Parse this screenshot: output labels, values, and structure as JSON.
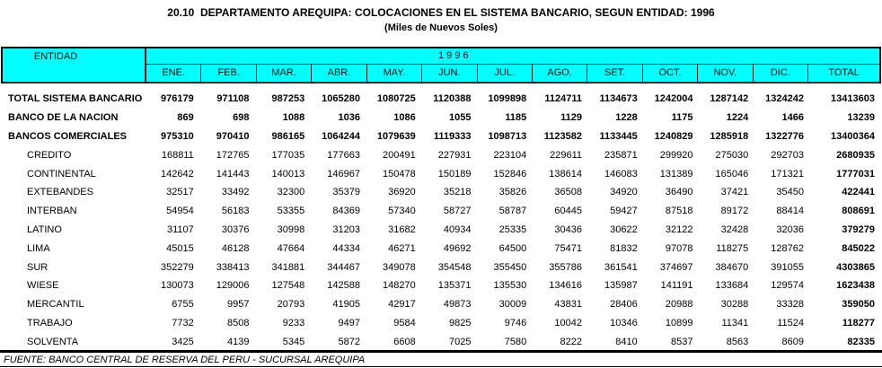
{
  "title": "20.10  DEPARTAMENTO AREQUIPA: COLOCACIONES EN EL SISTEMA BANCARIO, SEGUN ENTIDAD: 1996",
  "subtitle": "(Miles de Nuevos Soles)",
  "footer": "FUENTE: BANCO CENTRAL DE RESERVA DEL PERU - SUCURSAL AREQUIPA",
  "colors": {
    "header_bg": "#00FFFF",
    "text": "#000000",
    "background": "#FFFFFF"
  },
  "table": {
    "entity_header": "ENTIDAD",
    "year_header": "1 9 9 6",
    "columns": [
      "ENE.",
      "FEB.",
      "MAR.",
      "ABR.",
      "MAY.",
      "JUN.",
      "JUL.",
      "AGO.",
      "SET.",
      "OCT.",
      "NOV.",
      "DIC.",
      "TOTAL"
    ],
    "rows": [
      {
        "label": "TOTAL SISTEMA BANCARIO",
        "bold": true,
        "indent": false,
        "values": [
          976179,
          971108,
          987253,
          1065280,
          1080725,
          1120388,
          1099898,
          1124711,
          1134673,
          1242004,
          1287142,
          1324242,
          13413603
        ]
      },
      {
        "label": "BANCO DE LA NACION",
        "bold": true,
        "indent": false,
        "values": [
          869,
          698,
          1088,
          1036,
          1086,
          1055,
          1185,
          1129,
          1228,
          1175,
          1224,
          1466,
          13239
        ]
      },
      {
        "label": "BANCOS COMERCIALES",
        "bold": true,
        "indent": false,
        "values": [
          975310,
          970410,
          986165,
          1064244,
          1079639,
          1119333,
          1098713,
          1123582,
          1133445,
          1240829,
          1285918,
          1322776,
          13400364
        ]
      },
      {
        "label": "CREDITO",
        "bold": false,
        "indent": true,
        "values": [
          168811,
          172765,
          177035,
          177663,
          200491,
          227931,
          223104,
          229611,
          235871,
          299920,
          275030,
          292703,
          2680935
        ]
      },
      {
        "label": "CONTINENTAL",
        "bold": false,
        "indent": true,
        "values": [
          142642,
          141443,
          140013,
          146967,
          150478,
          150189,
          152846,
          138614,
          146083,
          131389,
          165046,
          171321,
          1777031
        ]
      },
      {
        "label": "EXTEBANDES",
        "bold": false,
        "indent": true,
        "values": [
          32517,
          33492,
          32300,
          35379,
          36920,
          35218,
          35826,
          36508,
          34920,
          36490,
          37421,
          35450,
          422441
        ]
      },
      {
        "label": "INTERBAN",
        "bold": false,
        "indent": true,
        "values": [
          54954,
          56183,
          53355,
          84369,
          57340,
          58727,
          58787,
          60445,
          59427,
          87518,
          89172,
          88414,
          808691
        ]
      },
      {
        "label": "LATINO",
        "bold": false,
        "indent": true,
        "values": [
          31107,
          30376,
          30998,
          31203,
          31682,
          40934,
          25335,
          30436,
          30622,
          32122,
          32428,
          32036,
          379279
        ]
      },
      {
        "label": "LIMA",
        "bold": false,
        "indent": true,
        "values": [
          45015,
          46128,
          47664,
          44334,
          46271,
          49692,
          64500,
          75471,
          81832,
          97078,
          118275,
          128762,
          845022
        ]
      },
      {
        "label": "SUR",
        "bold": false,
        "indent": true,
        "values": [
          352279,
          338413,
          341881,
          344467,
          349078,
          354548,
          355450,
          355786,
          361541,
          374697,
          384670,
          391055,
          4303865
        ]
      },
      {
        "label": "WIESE",
        "bold": false,
        "indent": true,
        "values": [
          130073,
          129006,
          127548,
          142588,
          148270,
          135371,
          135530,
          134616,
          135987,
          141191,
          133684,
          129574,
          1623438
        ]
      },
      {
        "label": "MERCANTIL",
        "bold": false,
        "indent": true,
        "values": [
          6755,
          9957,
          20793,
          41905,
          42917,
          49873,
          30009,
          43831,
          28406,
          20988,
          30288,
          33328,
          359050
        ]
      },
      {
        "label": "TRABAJO",
        "bold": false,
        "indent": true,
        "values": [
          7732,
          8508,
          9233,
          9497,
          9584,
          9825,
          9746,
          10042,
          10346,
          10899,
          11341,
          11524,
          118277
        ]
      },
      {
        "label": "SOLVENTA",
        "bold": false,
        "indent": true,
        "values": [
          3425,
          4139,
          5345,
          5872,
          6608,
          7025,
          7580,
          8222,
          8410,
          8537,
          8563,
          8609,
          82335
        ]
      }
    ]
  }
}
